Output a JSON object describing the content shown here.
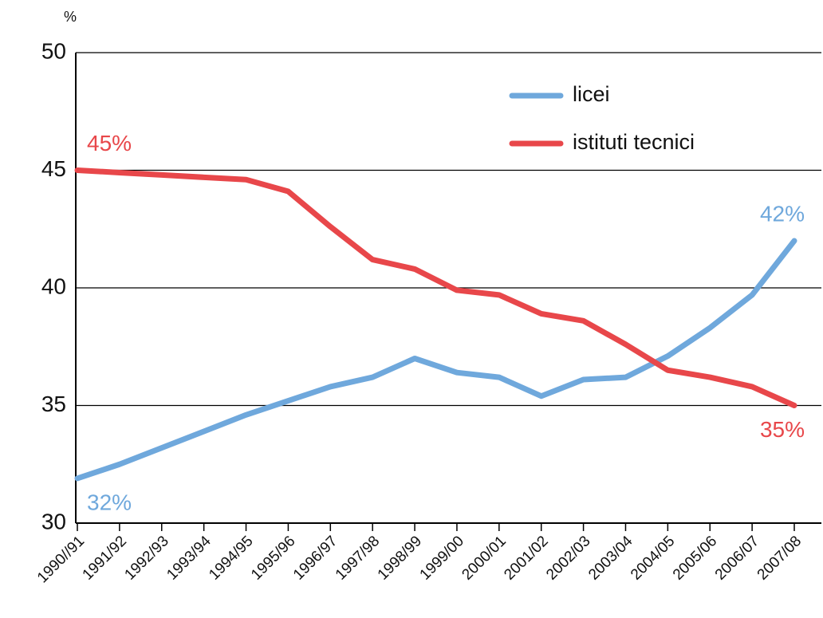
{
  "chart_data": {
    "type": "line",
    "y_unit": "%",
    "categories": [
      "1990//91",
      "1991/92",
      "1992/93",
      "1993/94",
      "1994/95",
      "1995/96",
      "1996/97",
      "1997/98",
      "1998/99",
      "1999/00",
      "2000/01",
      "2001/02",
      "2002/03",
      "2003/04",
      "2004/05",
      "2005/06",
      "2006/07",
      "2007/08"
    ],
    "series": [
      {
        "name": "licei",
        "color": "#6fa8dc",
        "values": [
          31.9,
          32.5,
          33.2,
          33.9,
          34.6,
          35.2,
          35.8,
          36.2,
          37.0,
          36.4,
          36.2,
          35.4,
          36.1,
          36.2,
          37.1,
          38.3,
          39.7,
          42
        ]
      },
      {
        "name": "istituti tecnici",
        "color": "#e8474a",
        "values": [
          45,
          44.9,
          44.8,
          44.7,
          44.6,
          44.1,
          42.6,
          41.2,
          40.8,
          39.9,
          39.7,
          38.9,
          38.6,
          37.6,
          36.5,
          36.2,
          35.8,
          35
        ]
      }
    ],
    "annotations": [
      {
        "text": "45%",
        "series": 1,
        "point": 0
      },
      {
        "text": "32%",
        "series": 0,
        "point": 0
      },
      {
        "text": "42%",
        "series": 0,
        "point": 17
      },
      {
        "text": "35%",
        "series": 1,
        "point": 17
      }
    ],
    "ylim": [
      30,
      50
    ],
    "yticks": [
      30,
      35,
      40,
      45,
      50
    ],
    "grid": true,
    "legend": "top-right"
  }
}
